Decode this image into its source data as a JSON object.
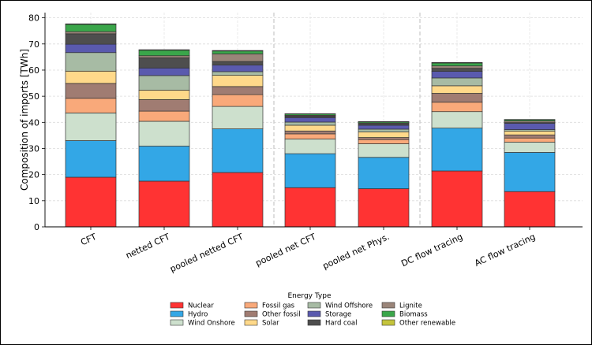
{
  "chart_data": {
    "type": "bar",
    "stacked": true,
    "title": "",
    "xlabel": "",
    "ylabel": "Composition of imports [TWh]",
    "ylim": [
      0,
      82
    ],
    "yticks": [
      0,
      10,
      20,
      30,
      40,
      50,
      60,
      70,
      80
    ],
    "grid": true,
    "categories": [
      "CFT",
      "netted CFT",
      "pooled netted CFT",
      "pooled net CFT",
      "pooled net Phys.",
      "DC flow tracing",
      "AC flow tracing"
    ],
    "legend": {
      "title": "Energy Type",
      "placement": "bottom-center",
      "columns": [
        [
          "Nuclear",
          "Hydro",
          "Wind Onshore"
        ],
        [
          "Fossil gas",
          "Other fossil",
          "Solar"
        ],
        [
          "Wind Offshore",
          "Storage",
          "Hard coal"
        ],
        [
          "Lignite",
          "Biomass",
          "Other renewable"
        ]
      ]
    },
    "series": [
      {
        "name": "Nuclear",
        "color": "#ff3333",
        "values": [
          19.0,
          17.5,
          20.8,
          15.0,
          14.6,
          21.4,
          13.5
        ]
      },
      {
        "name": "Hydro",
        "color": "#33a7e6",
        "values": [
          14.0,
          13.4,
          16.7,
          13.0,
          12.0,
          16.4,
          15.0
        ]
      },
      {
        "name": "Wind Onshore",
        "color": "#cde0cd",
        "values": [
          10.6,
          9.5,
          8.6,
          5.6,
          5.2,
          6.3,
          3.9
        ]
      },
      {
        "name": "Fossil gas",
        "color": "#f9a97a",
        "values": [
          5.6,
          3.9,
          4.5,
          2.0,
          1.6,
          3.6,
          1.6
        ]
      },
      {
        "name": "Other fossil",
        "color": "#a07c72",
        "values": [
          5.7,
          4.4,
          3.1,
          1.1,
          0.8,
          3.4,
          1.2
        ]
      },
      {
        "name": "Solar",
        "color": "#ffd98a",
        "values": [
          4.7,
          3.6,
          4.3,
          2.2,
          2.1,
          2.9,
          1.4
        ]
      },
      {
        "name": "Wind Offshore",
        "color": "#a7bba4",
        "values": [
          7.1,
          5.6,
          1.4,
          1.2,
          1.1,
          3.0,
          0.6
        ]
      },
      {
        "name": "Storage",
        "color": "#5a5aae",
        "values": [
          3.2,
          2.9,
          2.5,
          1.7,
          1.5,
          2.5,
          2.4
        ]
      },
      {
        "name": "Hard coal",
        "color": "#4e4e4e",
        "values": [
          4.0,
          3.9,
          1.4,
          0.6,
          0.6,
          1.2,
          0.3
        ]
      },
      {
        "name": "Lignite",
        "color": "#9a8579",
        "values": [
          0.8,
          0.8,
          2.9,
          0.3,
          0.3,
          0.9,
          0.6
        ]
      },
      {
        "name": "Biomass",
        "color": "#3aa64a",
        "values": [
          2.8,
          2.1,
          1.1,
          0.5,
          0.4,
          1.1,
          0.5
        ]
      },
      {
        "name": "Other renewable",
        "color": "#c4c43c",
        "values": [
          0.2,
          0.2,
          0.2,
          0.1,
          0.1,
          0.2,
          0.1
        ]
      }
    ]
  }
}
